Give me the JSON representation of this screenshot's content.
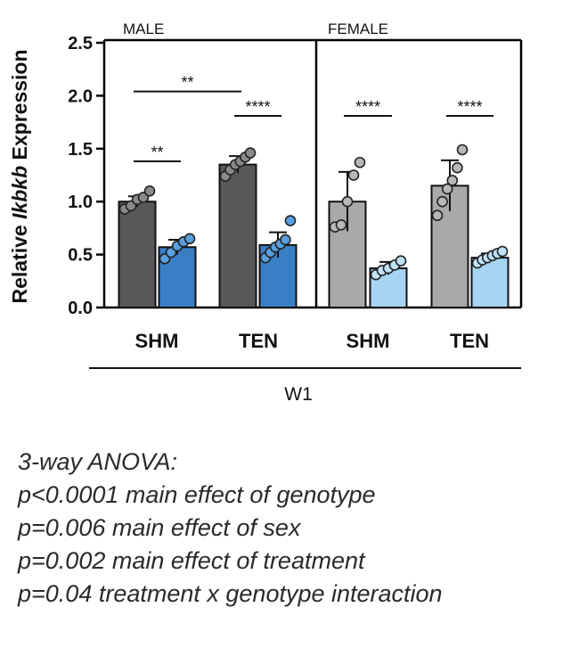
{
  "chart_data": {
    "type": "bar",
    "ylabel_prefix": "Relative ",
    "ylabel_gene": "Ikbkb",
    "ylabel_suffix": " Expression",
    "ylim": [
      0,
      2.5
    ],
    "yticks": [
      "0.0",
      "0.5",
      "1.0",
      "1.5",
      "2.0",
      "2.5"
    ],
    "panels": [
      {
        "label": "MALE",
        "groups": [
          "SHM",
          "TEN"
        ],
        "bars": [
          {
            "group": "SHM",
            "genotype": "dark",
            "mean": 1.0,
            "sd": 0.05,
            "points": [
              0.93,
              0.96,
              1.02,
              1.04,
              1.1
            ]
          },
          {
            "group": "SHM",
            "genotype": "light",
            "mean": 0.57,
            "sd": 0.07,
            "points": [
              0.46,
              0.52,
              0.58,
              0.62,
              0.65
            ]
          },
          {
            "group": "TEN",
            "genotype": "dark",
            "mean": 1.35,
            "sd": 0.08,
            "points": [
              1.24,
              1.3,
              1.35,
              1.38,
              1.42,
              1.46
            ]
          },
          {
            "group": "TEN",
            "genotype": "light",
            "mean": 0.59,
            "sd": 0.12,
            "points": [
              0.47,
              0.52,
              0.57,
              0.6,
              0.64,
              0.82
            ]
          }
        ],
        "significance": [
          {
            "label": "**",
            "from_bar": 0,
            "to_bar": 1,
            "y": 1.38
          },
          {
            "label": "**",
            "from_bar": 0,
            "to_bar": 2,
            "y": 2.04
          },
          {
            "label": "****",
            "from_bar": 2,
            "to_bar": 3,
            "y": 1.81
          }
        ]
      },
      {
        "label": "FEMALE",
        "groups": [
          "SHM",
          "TEN"
        ],
        "bars": [
          {
            "group": "SHM",
            "genotype": "dark",
            "mean": 1.0,
            "sd": 0.28,
            "points": [
              0.76,
              0.78,
              1.0,
              1.25,
              1.37
            ]
          },
          {
            "group": "SHM",
            "genotype": "light",
            "mean": 0.37,
            "sd": 0.06,
            "points": [
              0.31,
              0.35,
              0.37,
              0.4,
              0.44
            ]
          },
          {
            "group": "TEN",
            "genotype": "dark",
            "mean": 1.15,
            "sd": 0.24,
            "points": [
              0.87,
              1.0,
              1.12,
              1.2,
              1.32,
              1.49
            ]
          },
          {
            "group": "TEN",
            "genotype": "light",
            "mean": 0.47,
            "sd": 0.04,
            "points": [
              0.42,
              0.45,
              0.47,
              0.49,
              0.51,
              0.53
            ]
          }
        ],
        "significance": [
          {
            "label": "****",
            "from_bar": 0,
            "to_bar": 1,
            "y": 1.81
          },
          {
            "label": "****",
            "from_bar": 2,
            "to_bar": 3,
            "y": 1.81
          }
        ]
      }
    ],
    "xgroup_label": "W1",
    "colors": {
      "male_dark": "#58585b",
      "male_light": "#3a7fc6",
      "female_dark": "#a9a9ab",
      "female_light": "#a6d4f2",
      "axis": "#000000",
      "dot_male_dark": "#8a8a8c",
      "dot_male_light": "#5aa0de",
      "dot_female_dark": "#b8b8ba",
      "dot_female_light": "#bfe2f8"
    }
  },
  "stats": {
    "lines": [
      "3-way ANOVA:",
      "p<0.0001 main effect of genotype",
      "p=0.006 main effect of sex",
      "p=0.002 main effect of treatment",
      "p=0.04 treatment x genotype interaction"
    ]
  }
}
